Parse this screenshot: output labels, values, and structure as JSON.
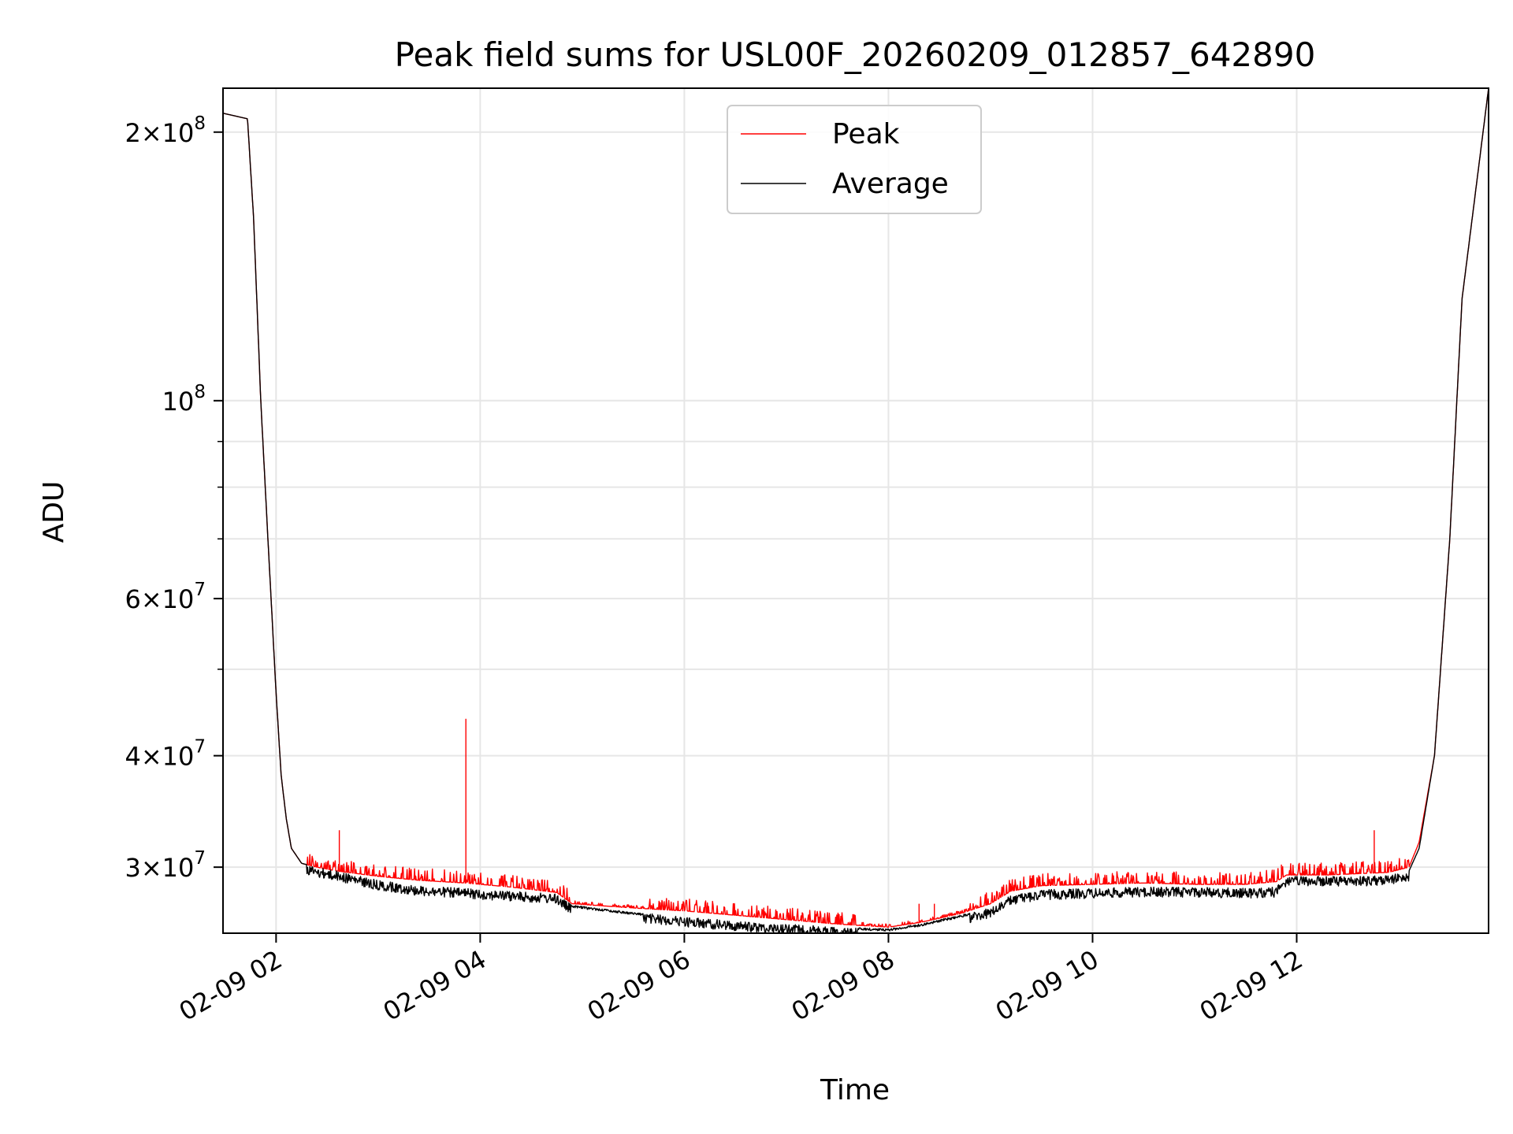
{
  "chart_data": {
    "type": "line",
    "title": "Peak field sums for USL00F_20260209_012857_642890",
    "xlabel": "Time",
    "ylabel": "ADU",
    "yscale": "log",
    "ylim": [
      25300000,
      224000000
    ],
    "xlim_hours": [
      1.48,
      13.88
    ],
    "grid": true,
    "legend_position": "top-center",
    "x_ticks": [
      {
        "hour": 2,
        "label": "02-09 02"
      },
      {
        "hour": 4,
        "label": "02-09 04"
      },
      {
        "hour": 6,
        "label": "02-09 06"
      },
      {
        "hour": 8,
        "label": "02-09 08"
      },
      {
        "hour": 10,
        "label": "02-09 10"
      },
      {
        "hour": 12,
        "label": "02-09 12"
      }
    ],
    "y_major_ticks": [
      {
        "value": 30000000,
        "mantissa": "3",
        "exp": "7"
      },
      {
        "value": 40000000,
        "mantissa": "4",
        "exp": "7"
      },
      {
        "value": 60000000,
        "mantissa": "6",
        "exp": "7"
      },
      {
        "value": 100000000,
        "mantissa": "",
        "exp": "8"
      },
      {
        "value": 200000000,
        "mantissa": "2",
        "exp": "8"
      }
    ],
    "y_minor_ticks": [
      50000000,
      70000000,
      80000000,
      90000000
    ],
    "series": [
      {
        "name": "Peak",
        "color": "#ff0000",
        "hours": [
          1.48,
          1.72,
          1.78,
          1.85,
          1.92,
          2.0,
          2.05,
          2.1,
          2.15,
          2.25,
          2.4,
          2.6,
          3.0,
          3.4,
          3.85,
          4.3,
          4.75,
          4.9,
          5.5,
          6.0,
          6.5,
          7.0,
          7.5,
          8.0,
          8.3,
          8.7,
          9.0,
          9.2,
          9.5,
          10.0,
          10.5,
          11.0,
          11.5,
          11.8,
          11.9,
          12.3,
          12.6,
          12.9,
          13.1,
          13.2,
          13.35,
          13.5,
          13.62,
          13.88
        ],
        "values": [
          210000000,
          207000000,
          160000000,
          100000000,
          70000000,
          47000000,
          38000000,
          34000000,
          31500000,
          30300000,
          30000000,
          29700000,
          29300000,
          29000000,
          28800000,
          28500000,
          28100000,
          27300000,
          27000000,
          26800000,
          26500000,
          26200000,
          25900000,
          25700000,
          26000000,
          26600000,
          27300000,
          28200000,
          28600000,
          28700000,
          28800000,
          28700000,
          28700000,
          28900000,
          29400000,
          29400000,
          29500000,
          29600000,
          30000000,
          32000000,
          40000000,
          70000000,
          130000000,
          224000000
        ],
        "spikes": [
          {
            "hour": 2.62,
            "value": 33000000
          },
          {
            "hour": 3.86,
            "value": 44000000
          },
          {
            "hour": 12.76,
            "value": 33000000
          },
          {
            "hour": 11.85,
            "value": 30200000
          },
          {
            "hour": 12.42,
            "value": 30200000
          },
          {
            "hour": 8.3,
            "value": 27300000
          },
          {
            "hour": 8.45,
            "value": 27300000
          }
        ]
      },
      {
        "name": "Average",
        "color": "#000000",
        "hours": [
          1.48,
          1.72,
          1.78,
          1.85,
          1.92,
          2.0,
          2.05,
          2.1,
          2.15,
          2.25,
          2.4,
          2.6,
          3.0,
          3.4,
          3.85,
          4.3,
          4.75,
          4.9,
          5.5,
          6.0,
          6.5,
          7.0,
          7.5,
          8.0,
          8.3,
          8.7,
          9.0,
          9.2,
          9.5,
          10.0,
          10.5,
          11.0,
          11.5,
          11.8,
          11.9,
          12.3,
          12.6,
          12.9,
          13.1,
          13.2,
          13.35,
          13.5,
          13.62,
          13.88
        ],
        "values": [
          210000000,
          207000000,
          160000000,
          100000000,
          70000000,
          47000000,
          38000000,
          34000000,
          31500000,
          30300000,
          30000000,
          29700000,
          29000000,
          28600000,
          28400000,
          28200000,
          28000000,
          27200000,
          26700000,
          26400000,
          26100000,
          25900000,
          25700000,
          25600000,
          25900000,
          26500000,
          27000000,
          27900000,
          28300000,
          28400000,
          28500000,
          28500000,
          28400000,
          28500000,
          29300000,
          29300000,
          29300000,
          29400000,
          29700000,
          31500000,
          40000000,
          70000000,
          130000000,
          224000000
        ]
      }
    ]
  }
}
